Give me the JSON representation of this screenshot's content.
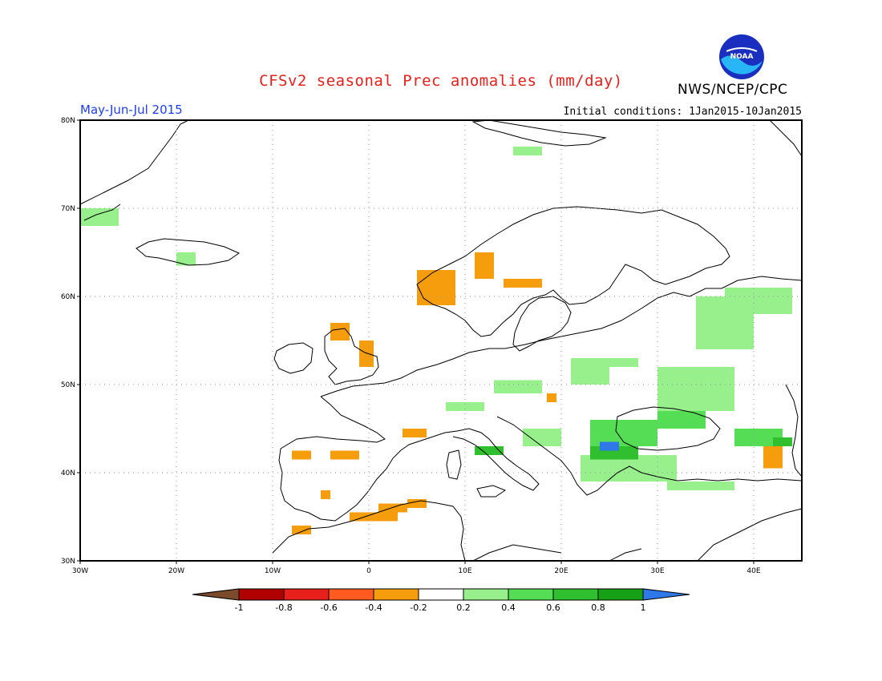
{
  "title": "CFSv2 seasonal Prec anomalies (mm/day)",
  "season": "May-Jun-Jul 2015",
  "initial_conditions": "Initial conditions: 1Jan2015-10Jan2015",
  "organization": "NWS/NCEP/CPC",
  "logo_text": "NOAA",
  "map": {
    "lon_range": [
      -30,
      45
    ],
    "lat_range": [
      30,
      80
    ],
    "lon_ticks": [
      {
        "value": -30,
        "label": "30W"
      },
      {
        "value": -20,
        "label": "20W"
      },
      {
        "value": -10,
        "label": "10W"
      },
      {
        "value": 0,
        "label": "0"
      },
      {
        "value": 10,
        "label": "10E"
      },
      {
        "value": 20,
        "label": "20E"
      },
      {
        "value": 30,
        "label": "30E"
      },
      {
        "value": 40,
        "label": "40E"
      }
    ],
    "lat_ticks": [
      {
        "value": 30,
        "label": "30N"
      },
      {
        "value": 40,
        "label": "40N"
      },
      {
        "value": 50,
        "label": "50N"
      },
      {
        "value": 60,
        "label": "60N"
      },
      {
        "value": 70,
        "label": "70N"
      },
      {
        "value": 80,
        "label": "80N"
      }
    ],
    "grid": true
  },
  "colorbar": {
    "labels": [
      "-1",
      "-0.8",
      "-0.6",
      "-0.4",
      "-0.2",
      "0.2",
      "0.4",
      "0.6",
      "0.8",
      "1"
    ],
    "colors": [
      "#7b4a2b",
      "#b00000",
      "#e8201c",
      "#ff5a1f",
      "#f59d0c",
      "#ffffff",
      "#98f08c",
      "#55dd55",
      "#2fbf2f",
      "#16a016",
      "#2e78e8"
    ]
  },
  "anomaly_regions": [
    {
      "category": "0.2 to 0.4",
      "color": "#98f08c",
      "lon": [
        -30,
        -26
      ],
      "lat": [
        68,
        70
      ]
    },
    {
      "category": "0.2 to 0.4",
      "color": "#98f08c",
      "lon": [
        -20,
        -18
      ],
      "lat": [
        63.5,
        65
      ]
    },
    {
      "category": "0.2 to 0.4",
      "color": "#98f08c",
      "lon": [
        15,
        18
      ],
      "lat": [
        76,
        77
      ]
    },
    {
      "category": "-0.4 to -0.2",
      "color": "#f59d0c",
      "lon": [
        5,
        9
      ],
      "lat": [
        59,
        63
      ]
    },
    {
      "category": "-0.4 to -0.2",
      "color": "#f59d0c",
      "lon": [
        11,
        13
      ],
      "lat": [
        62,
        65
      ]
    },
    {
      "category": "-0.4 to -0.2",
      "color": "#f59d0c",
      "lon": [
        14,
        18
      ],
      "lat": [
        61,
        62
      ]
    },
    {
      "category": "-0.4 to -0.2",
      "color": "#f59d0c",
      "lon": [
        -4,
        -2
      ],
      "lat": [
        55,
        57
      ]
    },
    {
      "category": "-0.4 to -0.2",
      "color": "#f59d0c",
      "lon": [
        -1,
        0.5
      ],
      "lat": [
        52,
        55
      ]
    },
    {
      "category": "0.2 to 0.4",
      "color": "#98f08c",
      "lon": [
        21,
        25
      ],
      "lat": [
        50,
        53
      ]
    },
    {
      "category": "0.2 to 0.4",
      "color": "#98f08c",
      "lon": [
        24,
        28
      ],
      "lat": [
        52,
        53
      ]
    },
    {
      "category": "0.2 to 0.4",
      "color": "#98f08c",
      "lon": [
        34,
        40
      ],
      "lat": [
        54,
        60
      ]
    },
    {
      "category": "0.2 to 0.4",
      "color": "#98f08c",
      "lon": [
        37,
        44
      ],
      "lat": [
        58,
        61
      ]
    },
    {
      "category": "0.2 to 0.4",
      "color": "#98f08c",
      "lon": [
        30,
        38
      ],
      "lat": [
        47,
        52
      ]
    },
    {
      "category": "0.2 to 0.4",
      "color": "#98f08c",
      "lon": [
        13,
        18
      ],
      "lat": [
        49,
        50.5
      ]
    },
    {
      "category": "0.2 to 0.4",
      "color": "#98f08c",
      "lon": [
        8,
        12
      ],
      "lat": [
        47,
        48
      ]
    },
    {
      "category": "0.2 to 0.4",
      "color": "#98f08c",
      "lon": [
        16,
        20
      ],
      "lat": [
        43,
        45
      ]
    },
    {
      "category": "0.2 to 0.4",
      "color": "#98f08c",
      "lon": [
        22,
        32
      ],
      "lat": [
        39,
        42
      ]
    },
    {
      "category": "0.2 to 0.4",
      "color": "#98f08c",
      "lon": [
        31,
        38
      ],
      "lat": [
        38,
        39
      ]
    },
    {
      "category": "0.4 to 0.6",
      "color": "#55dd55",
      "lon": [
        23,
        30
      ],
      "lat": [
        43,
        46
      ]
    },
    {
      "category": "0.4 to 0.6",
      "color": "#55dd55",
      "lon": [
        30,
        35
      ],
      "lat": [
        45,
        47
      ]
    },
    {
      "category": "0.4 to 0.6",
      "color": "#55dd55",
      "lon": [
        38,
        43
      ],
      "lat": [
        43,
        45
      ]
    },
    {
      "category": "0.6 to 0.8",
      "color": "#2fbf2f",
      "lon": [
        11,
        14
      ],
      "lat": [
        42,
        43
      ]
    },
    {
      "category": "0.6 to 0.8",
      "color": "#2fbf2f",
      "lon": [
        23,
        28
      ],
      "lat": [
        41.5,
        43
      ]
    },
    {
      "category": "0.6 to 0.8",
      "color": "#2fbf2f",
      "lon": [
        42,
        44
      ],
      "lat": [
        43,
        44
      ]
    },
    {
      "category": "above 1",
      "color": "#2e78e8",
      "lon": [
        24,
        26
      ],
      "lat": [
        42.5,
        43.5
      ]
    },
    {
      "category": "-0.4 to -0.2",
      "color": "#f59d0c",
      "lon": [
        3.5,
        6
      ],
      "lat": [
        44,
        45
      ]
    },
    {
      "category": "-0.4 to -0.2",
      "color": "#f59d0c",
      "lon": [
        -8,
        -6
      ],
      "lat": [
        41.5,
        42.5
      ]
    },
    {
      "category": "-0.4 to -0.2",
      "color": "#f59d0c",
      "lon": [
        -4,
        -1
      ],
      "lat": [
        41.5,
        42.5
      ]
    },
    {
      "category": "-0.4 to -0.2",
      "color": "#f59d0c",
      "lon": [
        -5,
        -4
      ],
      "lat": [
        37,
        38
      ]
    },
    {
      "category": "-0.4 to -0.2",
      "color": "#f59d0c",
      "lon": [
        -8,
        -6
      ],
      "lat": [
        33,
        34
      ]
    },
    {
      "category": "-0.4 to -0.2",
      "color": "#f59d0c",
      "lon": [
        -2,
        3
      ],
      "lat": [
        34.5,
        35.5
      ]
    },
    {
      "category": "-0.4 to -0.2",
      "color": "#f59d0c",
      "lon": [
        1,
        4
      ],
      "lat": [
        35.5,
        36.5
      ]
    },
    {
      "category": "-0.4 to -0.2",
      "color": "#f59d0c",
      "lon": [
        4,
        6
      ],
      "lat": [
        36,
        37
      ]
    },
    {
      "category": "-0.4 to -0.2",
      "color": "#f59d0c",
      "lon": [
        18.5,
        19.5
      ],
      "lat": [
        48,
        49
      ]
    },
    {
      "category": "-0.4 to -0.2",
      "color": "#f59d0c",
      "lon": [
        41,
        43
      ],
      "lat": [
        40.5,
        43
      ]
    }
  ]
}
